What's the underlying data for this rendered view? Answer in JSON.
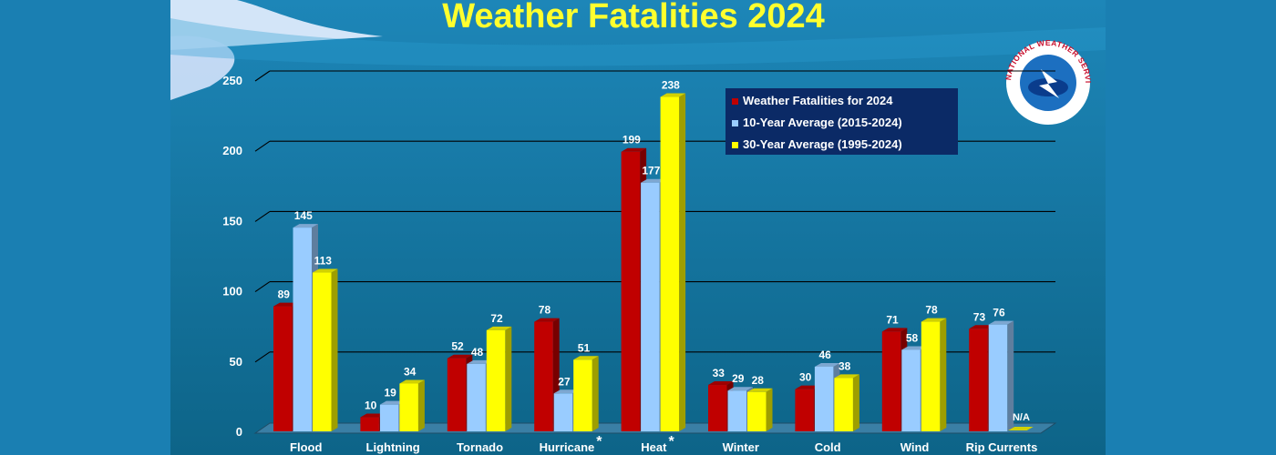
{
  "colors": {
    "outer_bg": "#1a7fb2",
    "slide_bg": "#0f6f95",
    "title": "#ffff2e",
    "text": "#ffffff",
    "gridline": "#000000",
    "legend_bg": "#0b2a66"
  },
  "logo": {
    "text": "NATIONAL WEATHER SERVICE"
  },
  "chart_data": {
    "type": "bar",
    "title": "Weather Fatalities 2024",
    "xlabel": "",
    "ylabel": "",
    "ylim": [
      0,
      250
    ],
    "yticks": [
      0,
      50,
      100,
      150,
      200,
      250
    ],
    "grid": true,
    "legend_position": "top-right",
    "categories": [
      "Flood",
      "Lightning",
      "Tornado",
      "Hurricane",
      "Heat",
      "Winter",
      "Cold",
      "Wind",
      "Rip Currents"
    ],
    "category_marks": [
      "",
      "",
      "",
      "*",
      "*",
      "",
      "",
      "",
      ""
    ],
    "series": [
      {
        "name": "Weather Fatalities for 2024",
        "color": "#c00000",
        "values": [
          89,
          10,
          52,
          78,
          199,
          33,
          30,
          71,
          73
        ]
      },
      {
        "name": "10-Year Average (2015-2024)",
        "color": "#99ccff",
        "values": [
          145,
          19,
          48,
          27,
          177,
          29,
          46,
          58,
          76
        ]
      },
      {
        "name": "30-Year Average (1995-2024)",
        "color": "#ffff00",
        "values": [
          113,
          34,
          72,
          51,
          238,
          28,
          38,
          78,
          null
        ]
      }
    ],
    "value_labels": [
      [
        "89",
        "10",
        "52",
        "78",
        "199",
        "33",
        "30",
        "71",
        "73"
      ],
      [
        "145",
        "19",
        "48",
        "27",
        "177",
        "29",
        "46",
        "58",
        "76"
      ],
      [
        "113",
        "34",
        "72",
        "51",
        "238",
        "28",
        "38",
        "78",
        "N/A"
      ]
    ]
  }
}
